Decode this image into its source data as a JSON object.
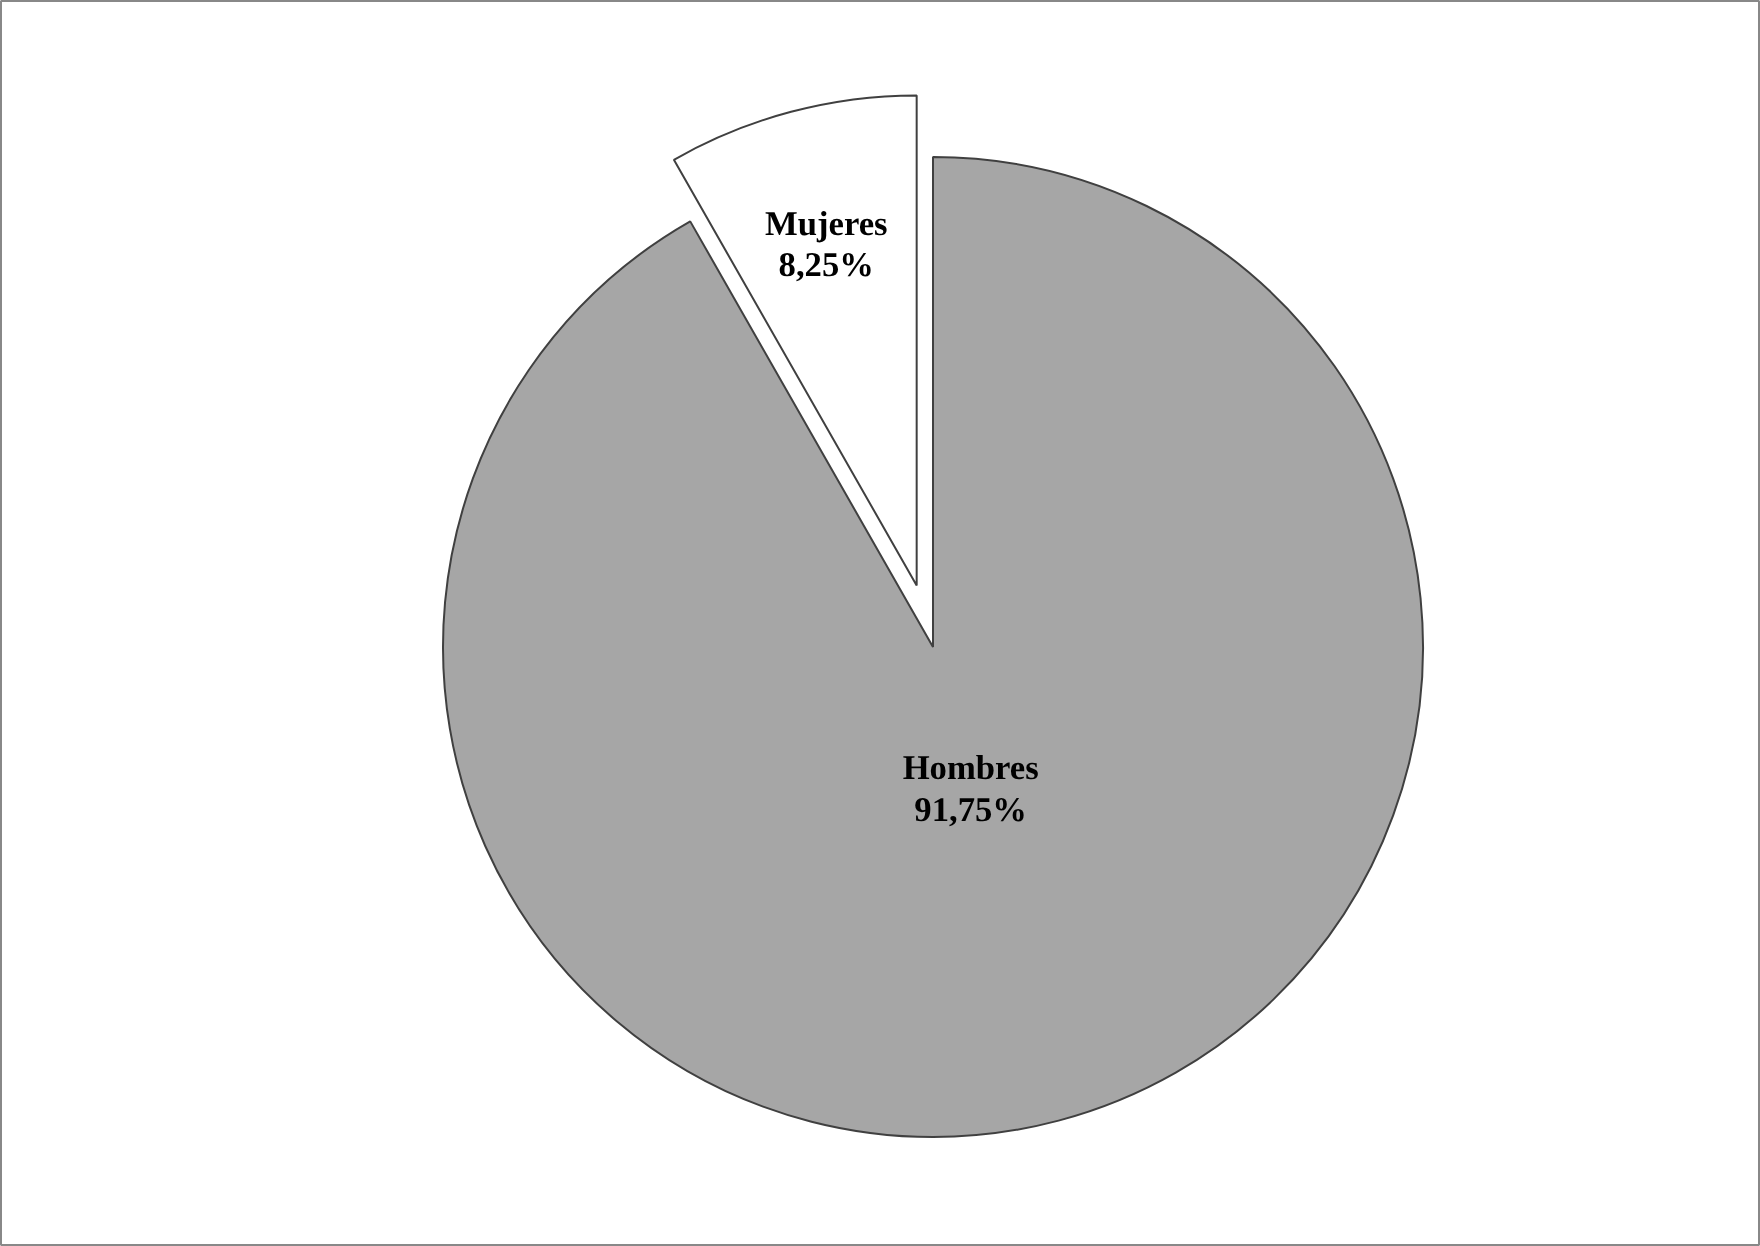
{
  "chart_data": {
    "type": "pie",
    "categories": [
      "Hombres",
      "Mujeres"
    ],
    "values": [
      91.75,
      8.25
    ],
    "colors": [
      "#a6a6a6",
      "#ffffff"
    ],
    "value_labels": [
      "91,75%",
      "8,25%"
    ]
  }
}
